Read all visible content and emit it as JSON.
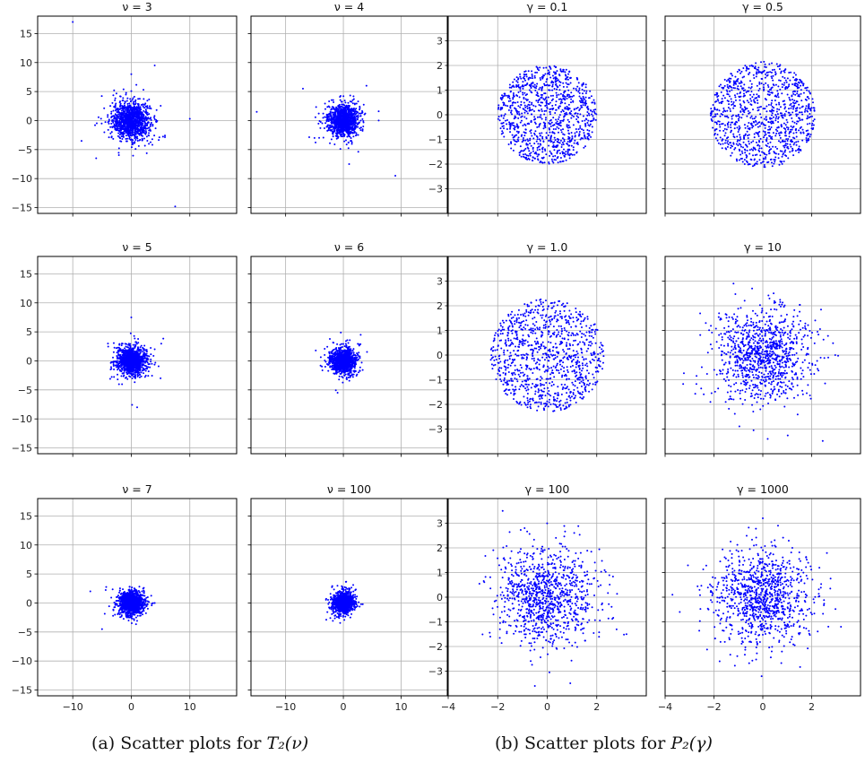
{
  "chart_data": [
    {
      "type": "scatter",
      "group": "a",
      "title": "ν = 3",
      "xlim": [
        -16,
        18
      ],
      "ylim": [
        -16,
        18
      ],
      "xticks": [
        -10,
        0,
        10
      ],
      "yticks": [
        -15,
        -10,
        -5,
        0,
        5,
        10,
        15
      ],
      "grid": true,
      "color": "#0000ff",
      "spread_sd": 1.6,
      "outliers": [
        [
          -10,
          17
        ],
        [
          4,
          9.5
        ],
        [
          10,
          0.3
        ],
        [
          7.5,
          -14.8
        ],
        [
          -6,
          -6.5
        ],
        [
          -8.5,
          -3.5
        ],
        [
          0,
          8
        ],
        [
          3,
          -4
        ]
      ]
    },
    {
      "type": "scatter",
      "group": "a",
      "title": "ν = 4",
      "xlim": [
        -16,
        18
      ],
      "ylim": [
        -16,
        18
      ],
      "xticks": [
        -10,
        0,
        10
      ],
      "yticks": [
        -15,
        -10,
        -5,
        0,
        5,
        10,
        15
      ],
      "grid": true,
      "color": "#0000ff",
      "spread_sd": 1.3,
      "outliers": [
        [
          -15,
          1.5
        ],
        [
          -7,
          5.5
        ],
        [
          9,
          -9.5
        ],
        [
          1,
          -7.5
        ],
        [
          4,
          6
        ],
        [
          -5,
          -3
        ]
      ]
    },
    {
      "type": "scatter",
      "group": "b",
      "title": "γ = 0.1",
      "xlim": [
        -4,
        4
      ],
      "ylim": [
        -4,
        4
      ],
      "xticks": [
        -4,
        -2,
        0,
        2
      ],
      "yticks": [
        -3,
        -2,
        -1,
        0,
        1,
        2,
        3
      ],
      "grid": true,
      "color": "#0000ff",
      "disc_radius": 2.0
    },
    {
      "type": "scatter",
      "group": "b",
      "title": "γ = 0.5",
      "xlim": [
        -4,
        4
      ],
      "ylim": [
        -4,
        4
      ],
      "xticks": [
        -4,
        -2,
        0,
        2
      ],
      "yticks": [
        -3,
        -2,
        -1,
        0,
        1,
        2,
        3
      ],
      "grid": true,
      "color": "#0000ff",
      "disc_radius": 2.15
    },
    {
      "type": "scatter",
      "group": "a",
      "title": "ν = 5",
      "xlim": [
        -16,
        18
      ],
      "ylim": [
        -16,
        18
      ],
      "xticks": [
        -10,
        0,
        10
      ],
      "yticks": [
        -15,
        -10,
        -5,
        0,
        5,
        10,
        15
      ],
      "grid": true,
      "color": "#0000ff",
      "spread_sd": 1.2,
      "outliers": [
        [
          0,
          7.5
        ],
        [
          1,
          -8
        ],
        [
          -3,
          1.5
        ],
        [
          4,
          2
        ],
        [
          5,
          -3
        ]
      ]
    },
    {
      "type": "scatter",
      "group": "a",
      "title": "ν = 6",
      "xlim": [
        -16,
        18
      ],
      "ylim": [
        -16,
        18
      ],
      "xticks": [
        -10,
        0,
        10
      ],
      "yticks": [
        -15,
        -10,
        -5,
        0,
        5,
        10,
        15
      ],
      "grid": true,
      "color": "#0000ff",
      "spread_sd": 1.05,
      "outliers": [
        [
          -1,
          -5.5
        ],
        [
          3,
          4.5
        ]
      ]
    },
    {
      "type": "scatter",
      "group": "b",
      "title": "γ = 1.0",
      "xlim": [
        -4,
        4
      ],
      "ylim": [
        -4,
        4
      ],
      "xticks": [
        -4,
        -2,
        0,
        2
      ],
      "yticks": [
        -3,
        -2,
        -1,
        0,
        1,
        2,
        3
      ],
      "grid": true,
      "color": "#0000ff",
      "disc_radius": 2.3
    },
    {
      "type": "scatter",
      "group": "b",
      "title": "γ = 10",
      "xlim": [
        -4,
        4
      ],
      "ylim": [
        -4,
        4
      ],
      "xticks": [
        -4,
        -2,
        0,
        2
      ],
      "yticks": [
        -3,
        -2,
        -1,
        0,
        1,
        2,
        3
      ],
      "grid": true,
      "color": "#0000ff",
      "gauss_sd": 1.0,
      "outliers": [
        [
          0.2,
          -3.4
        ],
        [
          -1.2,
          2.9
        ]
      ]
    },
    {
      "type": "scatter",
      "group": "a",
      "title": "ν = 7",
      "xlim": [
        -16,
        18
      ],
      "ylim": [
        -16,
        18
      ],
      "xticks": [
        -10,
        0,
        10
      ],
      "yticks": [
        -15,
        -10,
        -5,
        0,
        5,
        10,
        15
      ],
      "grid": true,
      "color": "#0000ff",
      "spread_sd": 1.0,
      "outliers": [
        [
          -5,
          -4.5
        ],
        [
          -7,
          2
        ]
      ]
    },
    {
      "type": "scatter",
      "group": "a",
      "title": "ν = 100",
      "xlim": [
        -16,
        18
      ],
      "ylim": [
        -16,
        18
      ],
      "xticks": [
        -10,
        0,
        10
      ],
      "yticks": [
        -15,
        -10,
        -5,
        0,
        5,
        10,
        15
      ],
      "grid": true,
      "color": "#0000ff",
      "spread_sd": 0.85,
      "outliers": []
    },
    {
      "type": "scatter",
      "group": "b",
      "title": "γ = 100",
      "xlim": [
        -4,
        4
      ],
      "ylim": [
        -4,
        4
      ],
      "xticks": [
        -4,
        -2,
        0,
        2
      ],
      "yticks": [
        -3,
        -2,
        -1,
        0,
        1,
        2,
        3
      ],
      "grid": true,
      "color": "#0000ff",
      "gauss_sd": 1.0,
      "outliers": [
        [
          -1.8,
          3.5
        ],
        [
          -0.5,
          -3.6
        ],
        [
          3.2,
          -1.5
        ],
        [
          -2.3,
          -1.6
        ]
      ]
    },
    {
      "type": "scatter",
      "group": "b",
      "title": "γ = 1000",
      "xlim": [
        -4,
        4
      ],
      "ylim": [
        -4,
        4
      ],
      "xticks": [
        -4,
        -2,
        0,
        2
      ],
      "yticks": [
        -3,
        -2,
        -1,
        0,
        1,
        2,
        3
      ],
      "grid": true,
      "color": "#0000ff",
      "gauss_sd": 1.0,
      "outliers": [
        [
          -3.7,
          0.1
        ],
        [
          0,
          3.2
        ],
        [
          3.2,
          -1.2
        ],
        [
          -3.4,
          -0.6
        ]
      ]
    }
  ],
  "captions": {
    "a_prefix": "(a) Scatter plots for ",
    "a_math": "T₂(ν)",
    "b_prefix": "(b) Scatter plots for ",
    "b_math": "P₂(γ)"
  }
}
